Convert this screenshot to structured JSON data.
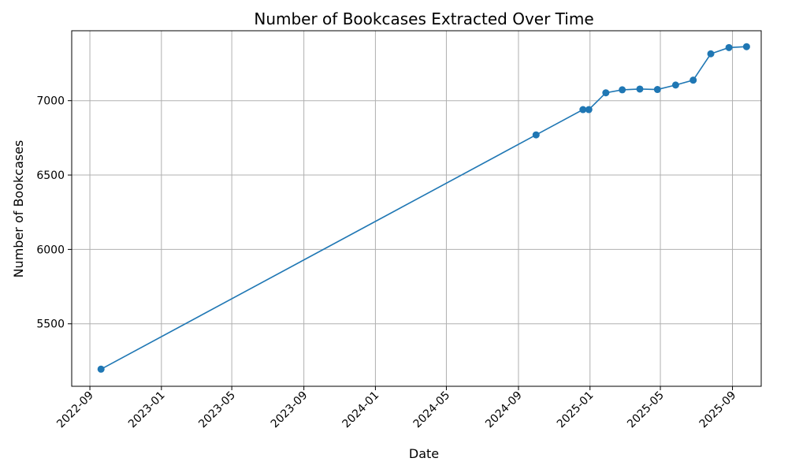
{
  "chart_data": {
    "type": "line",
    "title": "Number of Bookcases Extracted Over Time",
    "xlabel": "Date",
    "ylabel": "Number of Bookcases",
    "x_ticks": [
      "2022-09",
      "2023-01",
      "2023-05",
      "2023-09",
      "2024-01",
      "2024-05",
      "2024-09",
      "2025-01",
      "2025-05",
      "2025-09"
    ],
    "y_ticks": [
      5500,
      6000,
      6500,
      7000
    ],
    "xlim": [
      "2022-08-01",
      "2025-10-20"
    ],
    "ylim": [
      5080,
      7470
    ],
    "grid": true,
    "series": [
      {
        "color": "#1f77b4",
        "marker": "circle",
        "points": [
          {
            "date": "2022-09-20",
            "value": 5195
          },
          {
            "date": "2024-10-01",
            "value": 6770
          },
          {
            "date": "2024-12-20",
            "value": 6940
          },
          {
            "date": "2024-12-30",
            "value": 6940
          },
          {
            "date": "2025-01-28",
            "value": 7053
          },
          {
            "date": "2025-02-25",
            "value": 7073
          },
          {
            "date": "2025-03-27",
            "value": 7078
          },
          {
            "date": "2025-04-26",
            "value": 7075
          },
          {
            "date": "2025-05-27",
            "value": 7105
          },
          {
            "date": "2025-06-26",
            "value": 7138
          },
          {
            "date": "2025-07-26",
            "value": 7315
          },
          {
            "date": "2025-08-26",
            "value": 7357
          },
          {
            "date": "2025-09-25",
            "value": 7363
          }
        ]
      }
    ]
  }
}
